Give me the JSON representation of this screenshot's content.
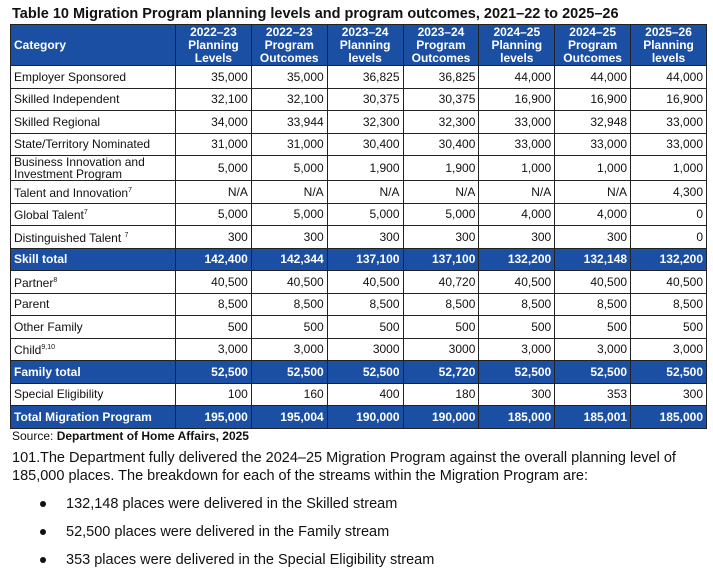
{
  "title": "Table 10 Migration Program planning levels and program outcomes, 2021–22 to 2025–26",
  "headers": [
    "Category",
    "2022–23 Planning Levels",
    "2022–23 Program Outcomes",
    "2023–24 Planning levels",
    "2023–24 Program Outcomes",
    "2024–25 Planning levels",
    "2024–25 Program Outcomes",
    "2025–26 Planning levels"
  ],
  "header_lines": [
    [
      "Category"
    ],
    [
      "2022–23",
      "Planning",
      "Levels"
    ],
    [
      "2022–23",
      "Program",
      "Outcomes"
    ],
    [
      "2023–24",
      "Planning",
      "levels"
    ],
    [
      "2023–24",
      "Program",
      "Outcomes"
    ],
    [
      "2024–25",
      "Planning",
      "levels"
    ],
    [
      "2024–25",
      "Program",
      "Outcomes"
    ],
    [
      "2025–26",
      "Planning",
      "levels"
    ]
  ],
  "rows": [
    {
      "category": "Employer Sponsored",
      "sup": "",
      "total": false,
      "values": [
        "35,000",
        "35,000",
        "36,825",
        "36,825",
        "44,000",
        "44,000",
        "44,000"
      ]
    },
    {
      "category": "Skilled Independent",
      "sup": "",
      "total": false,
      "values": [
        "32,100",
        "32,100",
        "30,375",
        "30,375",
        "16,900",
        "16,900",
        "16,900"
      ]
    },
    {
      "category": "Skilled Regional",
      "sup": "",
      "total": false,
      "values": [
        "34,000",
        "33,944",
        "32,300",
        "32,300",
        "33,000",
        "32,948",
        "33,000"
      ]
    },
    {
      "category": "State/Territory Nominated",
      "sup": "",
      "total": false,
      "values": [
        "31,000",
        "31,000",
        "30,400",
        "30,400",
        "33,000",
        "33,000",
        "33,000"
      ]
    },
    {
      "category": "Business Innovation and Investment Program",
      "sup": "",
      "total": false,
      "values": [
        "5,000",
        "5,000",
        "1,900",
        "1,900",
        "1,000",
        "1,000",
        "1,000"
      ]
    },
    {
      "category": "Talent and Innovation",
      "sup": "7",
      "total": false,
      "values": [
        "N/A",
        "N/A",
        "N/A",
        "N/A",
        "N/A",
        "N/A",
        "4,300"
      ]
    },
    {
      "category": "Global Talent",
      "sup": "7",
      "total": false,
      "values": [
        "5,000",
        "5,000",
        "5,000",
        "5,000",
        "4,000",
        "4,000",
        "0"
      ]
    },
    {
      "category": "Distinguished Talent ",
      "sup": "7",
      "total": false,
      "values": [
        "300",
        "300",
        "300",
        "300",
        "300",
        "300",
        "0"
      ]
    },
    {
      "category": "Skill total",
      "sup": "",
      "total": true,
      "values": [
        "142,400",
        "142,344",
        "137,100",
        "137,100",
        "132,200",
        "132,148",
        "132,200"
      ]
    },
    {
      "category": "Partner",
      "sup": "8",
      "total": false,
      "values": [
        "40,500",
        "40,500",
        "40,500",
        "40,720",
        "40,500",
        "40,500",
        "40,500"
      ]
    },
    {
      "category": "Parent",
      "sup": "",
      "total": false,
      "values": [
        "8,500",
        "8,500",
        "8,500",
        "8,500",
        "8,500",
        "8,500",
        "8,500"
      ]
    },
    {
      "category": "Other Family",
      "sup": "",
      "total": false,
      "values": [
        "500",
        "500",
        "500",
        "500",
        "500",
        "500",
        "500"
      ]
    },
    {
      "category": "Child",
      "sup": "9,10",
      "total": false,
      "values": [
        "3,000",
        "3,000",
        "3000",
        "3000",
        "3,000",
        "3,000",
        "3,000"
      ]
    },
    {
      "category": "Family total",
      "sup": "",
      "total": true,
      "values": [
        "52,500",
        "52,500",
        "52,500",
        "52,720",
        "52,500",
        "52,500",
        "52,500"
      ]
    },
    {
      "category": "Special Eligibility",
      "sup": "",
      "total": false,
      "values": [
        "100",
        "160",
        "400",
        "180",
        "300",
        "353",
        "300"
      ]
    },
    {
      "category": "Total Migration Program",
      "sup": "",
      "total": true,
      "values": [
        "195,000",
        "195,004",
        "190,000",
        "190,000",
        "185,000",
        "185,001",
        "185,000"
      ]
    }
  ],
  "source_label": "Source: ",
  "source": "Department of Home Affairs, 2025",
  "paragraph_number": "101.",
  "paragraph": "The Department fully delivered the 2024–25 Migration Program against the overall planning level of 185,000 places. The breakdown for each of the streams within the Migration Program are:",
  "bullets": [
    "132,148 places were delivered in the Skilled stream",
    "52,500 places were delivered in the Family stream",
    "353 places were delivered in the Special Eligibility stream"
  ],
  "colors": {
    "header_blue": "#1b4fa3"
  }
}
